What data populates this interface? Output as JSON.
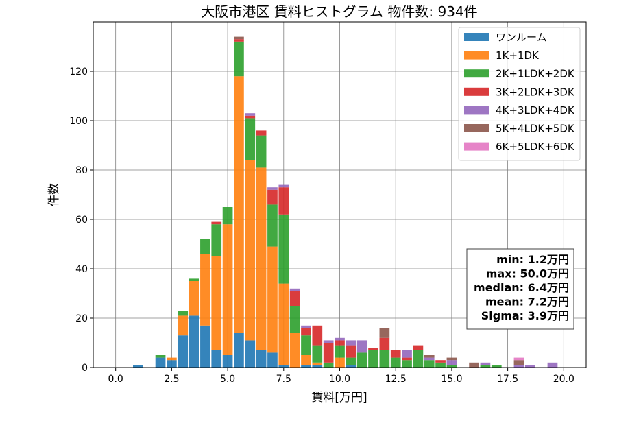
{
  "chart_data": {
    "type": "bar",
    "title": "大阪市港区 賃料ヒストグラム  物件数: 934件",
    "xlabel": "賃料[万円]",
    "ylabel": "件数",
    "xlim": [
      -1.0,
      21.0
    ],
    "ylim": [
      0,
      140
    ],
    "grid": true,
    "stacked": true,
    "bin_width": 0.5,
    "legend_position": "upper right",
    "x_ticks": [
      {
        "value": 0.0,
        "label": "0.0"
      },
      {
        "value": 2.5,
        "label": "2.5"
      },
      {
        "value": 5.0,
        "label": "5.0"
      },
      {
        "value": 7.5,
        "label": "7.5"
      },
      {
        "value": 10.0,
        "label": "10.0"
      },
      {
        "value": 12.5,
        "label": "12.5"
      },
      {
        "value": 15.0,
        "label": "15.0"
      },
      {
        "value": 17.5,
        "label": "17.5"
      },
      {
        "value": 20.0,
        "label": "20.0"
      }
    ],
    "y_ticks": [
      {
        "value": 0,
        "label": "0"
      },
      {
        "value": 20,
        "label": "20"
      },
      {
        "value": 40,
        "label": "40"
      },
      {
        "value": 60,
        "label": "60"
      },
      {
        "value": 80,
        "label": "80"
      },
      {
        "value": 100,
        "label": "100"
      },
      {
        "value": 120,
        "label": "120"
      }
    ],
    "bins": [
      1.0,
      2.0,
      2.5,
      3.0,
      3.5,
      4.0,
      4.5,
      5.0,
      5.5,
      6.0,
      6.5,
      7.0,
      7.5,
      8.0,
      8.5,
      9.0,
      9.5,
      10.0,
      10.5,
      11.0,
      11.5,
      12.0,
      12.5,
      13.0,
      13.5,
      14.0,
      14.5,
      15.0,
      16.0,
      16.5,
      17.0,
      18.0,
      18.5,
      19.5
    ],
    "series": [
      {
        "name": "ワンルーム",
        "color": "#1f77b4",
        "values": [
          1,
          4,
          3,
          13,
          21,
          17,
          7,
          5,
          14,
          11,
          7,
          6,
          1,
          0,
          1,
          1,
          0,
          0,
          1,
          0,
          0,
          0,
          0,
          0,
          0,
          0,
          0,
          0,
          0,
          0,
          0,
          0,
          0,
          0
        ]
      },
      {
        "name": "1K+1DK",
        "color": "#ff7f0e",
        "values": [
          0,
          0,
          1,
          8,
          14,
          29,
          38,
          53,
          104,
          73,
          74,
          43,
          33,
          14,
          4,
          1,
          0,
          4,
          0,
          0,
          0,
          0,
          0,
          0,
          0,
          0,
          0,
          0,
          0,
          0,
          0,
          0,
          0,
          0
        ]
      },
      {
        "name": "2K+1LDK+2DK",
        "color": "#2ca02c",
        "values": [
          0,
          1,
          0,
          2,
          1,
          6,
          13,
          7,
          14,
          17,
          13,
          17,
          28,
          11,
          8,
          7,
          2,
          5,
          3,
          6,
          7,
          7,
          4,
          3,
          7,
          3,
          2,
          1,
          0,
          1,
          1,
          0,
          0,
          0
        ]
      },
      {
        "name": "3K+2LDK+3DK",
        "color": "#d62728",
        "values": [
          0,
          0,
          0,
          0,
          0,
          0,
          1,
          0,
          1,
          1,
          2,
          6,
          11,
          6,
          3,
          8,
          8,
          2,
          5,
          0,
          1,
          5,
          3,
          1,
          2,
          0,
          1,
          0,
          0,
          0,
          0,
          0,
          0,
          0
        ]
      },
      {
        "name": "4K+3LDK+4DK",
        "color": "#9467bd",
        "values": [
          0,
          0,
          0,
          0,
          0,
          0,
          0,
          0,
          0,
          1,
          0,
          1,
          1,
          1,
          1,
          0,
          1,
          1,
          2,
          5,
          0,
          0,
          0,
          3,
          0,
          1,
          0,
          2,
          0,
          1,
          0,
          1,
          1,
          2
        ]
      },
      {
        "name": "5K+4LDK+5DK",
        "color": "#8c564b",
        "values": [
          0,
          0,
          0,
          0,
          0,
          0,
          0,
          0,
          1,
          0,
          0,
          0,
          0,
          0,
          0,
          0,
          0,
          0,
          0,
          0,
          0,
          4,
          0,
          0,
          0,
          1,
          0,
          1,
          2,
          0,
          0,
          2,
          0,
          0
        ]
      },
      {
        "name": "6K+5LDK+6DK",
        "color": "#e377c2",
        "values": [
          0,
          0,
          0,
          0,
          0,
          0,
          0,
          0,
          0,
          0,
          0,
          0,
          0,
          0,
          0,
          0,
          0,
          0,
          0,
          0,
          0,
          0,
          0,
          0,
          0,
          0,
          0,
          0,
          0,
          0,
          0,
          1,
          0,
          0
        ]
      }
    ],
    "stats_box": [
      "min: 1.2万円",
      "max: 50.0万円",
      "median: 6.4万円",
      "mean: 7.2万円",
      "Sigma: 3.9万円"
    ]
  }
}
